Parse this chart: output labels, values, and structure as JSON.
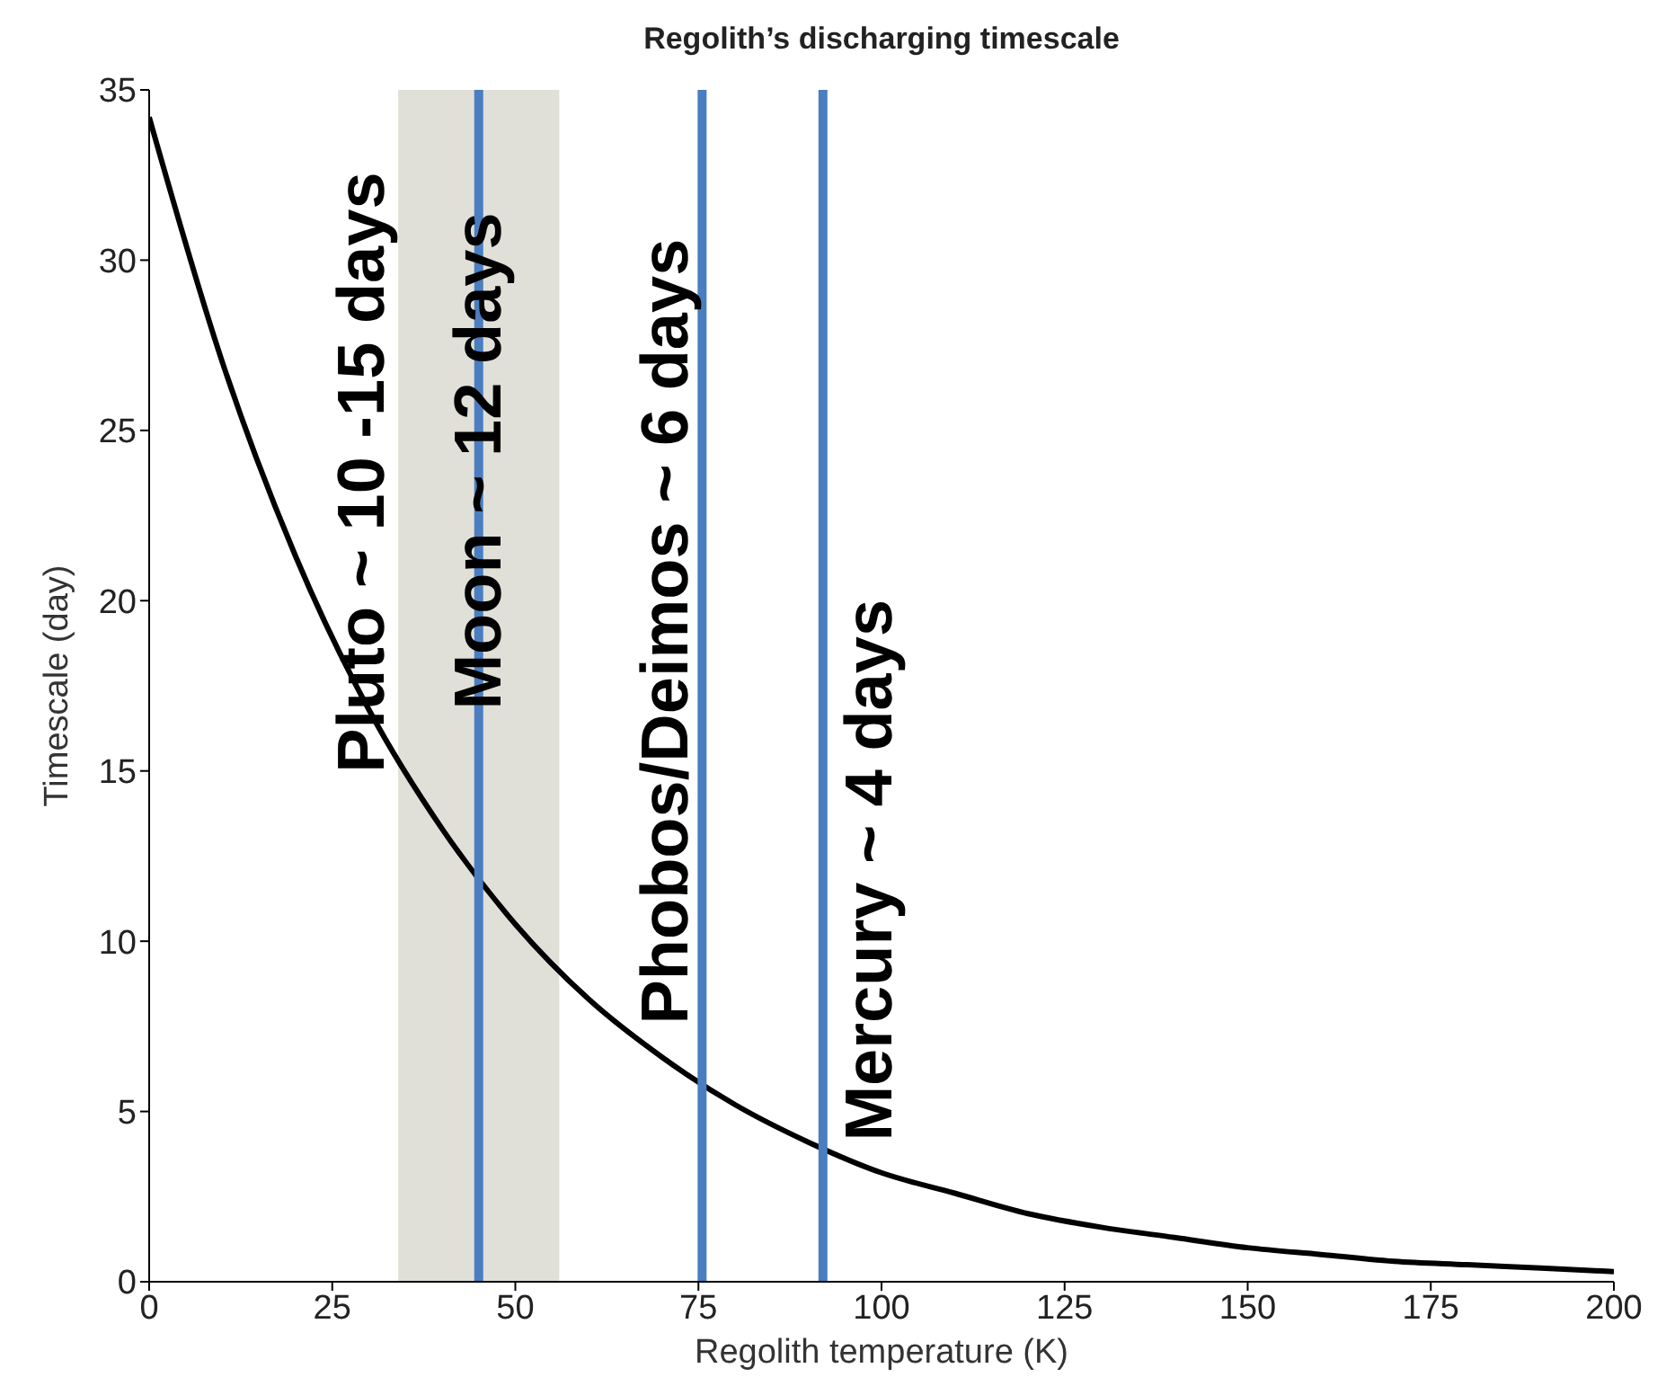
{
  "chart_data": {
    "type": "line",
    "title": "Regolith’s discharging timescale",
    "xlabel": "Regolith temperature (K)",
    "ylabel": "Timescale (day)",
    "x": [
      0,
      10,
      20,
      30,
      40,
      50,
      60,
      70,
      80,
      90,
      100,
      110,
      120,
      130,
      140,
      150,
      160,
      170,
      180,
      190,
      200
    ],
    "series": [
      {
        "color": "#000000",
        "values": [
          34.2,
          27,
          21.3,
          16.8,
          13.3,
          10.5,
          8.3,
          6.6,
          5.2,
          4.1,
          3.2,
          2.6,
          2.0,
          1.6,
          1.3,
          1.0,
          0.8,
          0.6,
          0.5,
          0.4,
          0.3
        ]
      }
    ],
    "xlim": [
      0,
      200
    ],
    "xticks": [
      0,
      25,
      50,
      75,
      100,
      125,
      150,
      175,
      200
    ],
    "ylim": [
      0,
      35
    ],
    "yticks": [
      0,
      5,
      10,
      15,
      20,
      25,
      30,
      35
    ],
    "grid": false,
    "legend": false,
    "marker": "none",
    "line_style": "solid",
    "bands": [
      {
        "axis": "x",
        "from": 34,
        "to": 56,
        "label": "Pluto ~ 10 -15 days",
        "color": "#e0e0d9"
      }
    ],
    "ref_lines": [
      {
        "axis": "x",
        "value": 45,
        "label": "Moon ~ 12 days",
        "color": "#4a7ec0"
      },
      {
        "axis": "x",
        "value": 75.5,
        "label": "Phobos/Deimos ~ 6 days",
        "color": "#4a7ec0"
      },
      {
        "axis": "x",
        "value": 92,
        "label": "Mercury ~ 4 days",
        "color": "#4a7ec0"
      }
    ]
  }
}
